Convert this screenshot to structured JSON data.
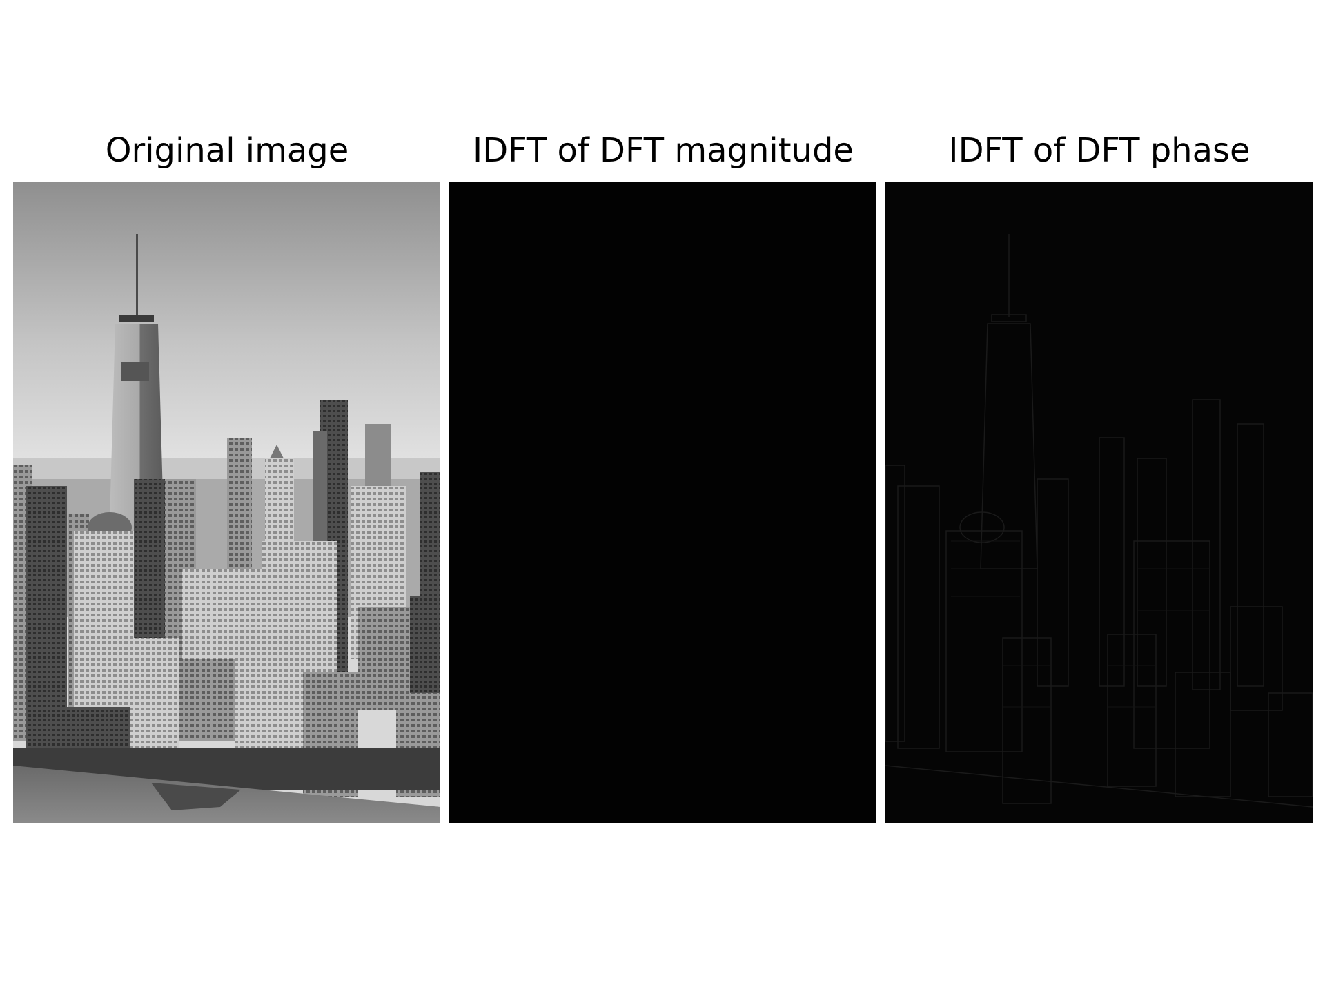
{
  "panels": [
    {
      "title": "Original image",
      "content": "grayscale aerial photo of a city skyline with a tall spire tower, dense buildings, and water in the foreground"
    },
    {
      "title": "IDFT of DFT magnitude",
      "content": "nearly uniform black image"
    },
    {
      "title": "IDFT of DFT phase",
      "content": "very dark image with faint edge outlines of the same skyline"
    }
  ],
  "colors": {
    "background": "#ffffff",
    "text": "#000000",
    "magnitude_panel": "#020202",
    "phase_panel": "#050505"
  }
}
